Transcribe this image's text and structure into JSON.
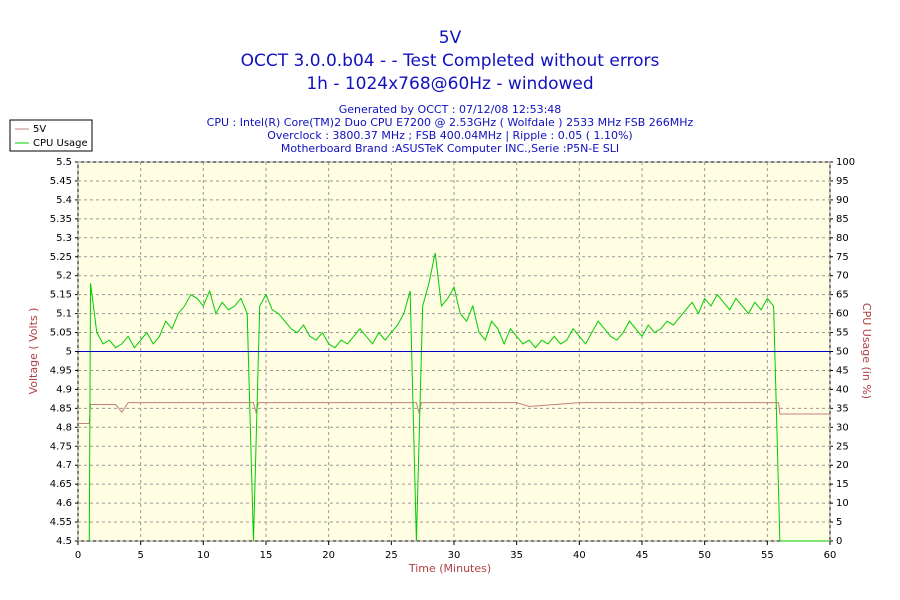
{
  "chart_data": {
    "type": "line",
    "title": [
      "5V",
      "OCCT 3.0.0.b04 -  - Test Completed without errors",
      "1h - 1024x768@60Hz - windowed"
    ],
    "subtitle": [
      "Generated by OCCT : 07/12/08 12:53:48",
      "CPU : Intel(R) Core(TM)2 Duo CPU E7200 @ 2.53GHz ( Wolfdale ) 2533 MHz FSB 266MHz",
      "Overclock : 3800.37 MHz ; FSB 400.04MHz | Ripple : 0.05 ( 1.10%)",
      "Motherboard Brand :ASUSTeK Computer INC.,Serie :P5N-E SLI"
    ],
    "xlabel": "Time (Minutes)",
    "ylabel": "Voltage ( Volts )",
    "y2label": "CPU Usage (in %)",
    "xlim": [
      0,
      60
    ],
    "xticks": [
      0,
      5,
      10,
      15,
      20,
      25,
      30,
      35,
      40,
      45,
      50,
      55,
      60
    ],
    "ylim": [
      4.5,
      5.5
    ],
    "yticks": [
      4.5,
      4.55,
      4.6,
      4.65,
      4.7,
      4.75,
      4.8,
      4.85,
      4.9,
      4.95,
      5,
      5.05,
      5.1,
      5.15,
      5.2,
      5.25,
      5.3,
      5.35,
      5.4,
      5.45,
      5.5
    ],
    "y2lim": [
      0,
      100
    ],
    "y2ticks": [
      0,
      5,
      10,
      15,
      20,
      25,
      30,
      35,
      40,
      45,
      50,
      55,
      60,
      65,
      70,
      75,
      80,
      85,
      90,
      95,
      100
    ],
    "grid": true,
    "legend": "top-left",
    "reference_line": {
      "y": 5,
      "color": "#0000cc"
    },
    "series": [
      {
        "name": "5V",
        "color": "#c08080",
        "x": [
          0,
          0.9,
          1,
          3,
          3.5,
          4,
          14,
          14.2,
          14.4,
          27,
          27.2,
          27.4,
          35,
          36,
          40,
          45,
          50,
          55.9,
          56,
          60
        ],
        "values": [
          4.81,
          4.81,
          4.86,
          4.86,
          4.84,
          4.865,
          4.865,
          4.84,
          4.865,
          4.865,
          4.84,
          4.865,
          4.865,
          4.855,
          4.865,
          4.865,
          4.865,
          4.865,
          4.835,
          4.835
        ]
      },
      {
        "name": "CPU Usage",
        "color": "#00cc00",
        "axis": "y2",
        "x": [
          0.9,
          1,
          1.5,
          2,
          2.5,
          3,
          3.5,
          4,
          4.5,
          5,
          5.5,
          6,
          6.5,
          7,
          7.5,
          8,
          8.5,
          9,
          9.5,
          10,
          10.5,
          11,
          11.5,
          12,
          12.5,
          13,
          13.5,
          14,
          14.5,
          15,
          15.5,
          16,
          16.5,
          17,
          17.5,
          18,
          18.5,
          19,
          19.5,
          20,
          20.5,
          21,
          21.5,
          22,
          22.5,
          23,
          23.5,
          24,
          24.5,
          25,
          25.5,
          26,
          26.5,
          27,
          27.5,
          28,
          28.5,
          29,
          29.5,
          30,
          30.5,
          31,
          31.5,
          32,
          32.5,
          33,
          33.5,
          34,
          34.5,
          35,
          35.5,
          36,
          36.5,
          37,
          37.5,
          38,
          38.5,
          39,
          39.5,
          40,
          40.5,
          41,
          41.5,
          42,
          42.5,
          43,
          43.5,
          44,
          44.5,
          45,
          45.5,
          46,
          46.5,
          47,
          47.5,
          48,
          48.5,
          49,
          49.5,
          50,
          50.5,
          51,
          51.5,
          52,
          52.5,
          53,
          53.5,
          54,
          54.5,
          55,
          55.5,
          56,
          60
        ],
        "values": [
          0,
          68,
          55,
          52,
          53,
          51,
          52,
          54,
          51,
          53,
          55,
          52,
          54,
          58,
          56,
          60,
          62,
          65,
          64,
          62,
          66,
          60,
          63,
          61,
          62,
          64,
          60,
          0,
          62,
          65,
          61,
          60,
          58,
          56,
          55,
          57,
          54,
          53,
          55,
          52,
          51,
          53,
          52,
          54,
          56,
          54,
          52,
          55,
          53,
          55,
          57,
          60,
          66,
          0,
          62,
          68,
          76,
          62,
          64,
          67,
          60,
          58,
          62,
          55,
          53,
          58,
          56,
          52,
          56,
          54,
          52,
          53,
          51,
          53,
          52,
          54,
          52,
          53,
          56,
          54,
          52,
          55,
          58,
          56,
          54,
          53,
          55,
          58,
          56,
          54,
          57,
          55,
          56,
          58,
          57,
          59,
          61,
          63,
          60,
          64,
          62,
          65,
          63,
          61,
          64,
          62,
          60,
          63,
          61,
          64,
          62,
          0,
          0
        ]
      }
    ]
  }
}
